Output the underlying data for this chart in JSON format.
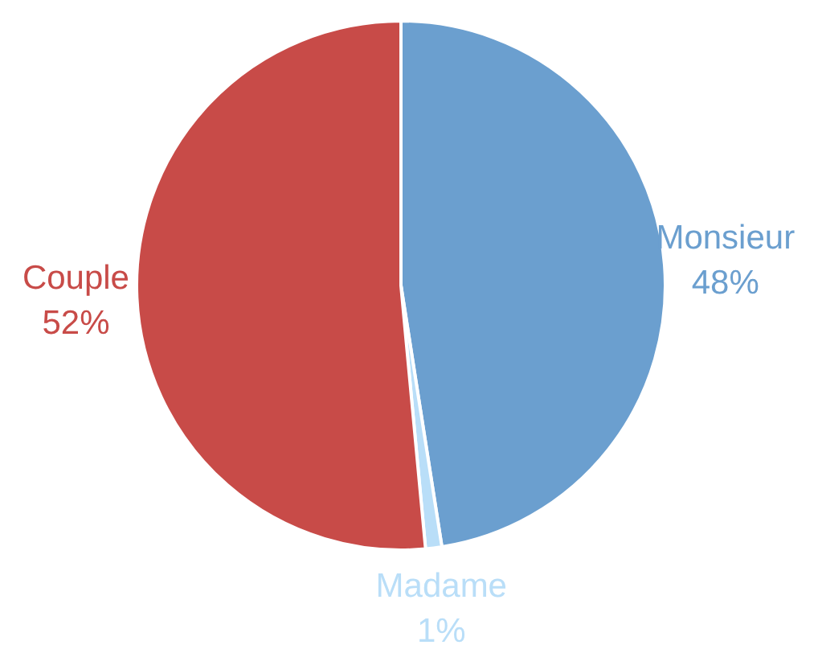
{
  "chart_data": {
    "type": "pie",
    "categories": [
      "Monsieur",
      "Madame",
      "Couple"
    ],
    "values": [
      48,
      1,
      52
    ],
    "colors": [
      "#6b9fcf",
      "#b9def8",
      "#c84b48"
    ],
    "value_labels": [
      "48%",
      "1%",
      "52%"
    ],
    "legend": false
  }
}
